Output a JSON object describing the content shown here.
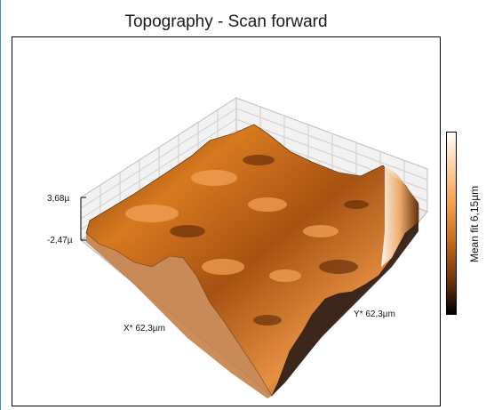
{
  "window": {
    "title": "Topography - Scan forward"
  },
  "plot": {
    "z_axis": {
      "max_label": "3,68µ",
      "min_label": "-2,47µ"
    },
    "x_axis_label": "X* 62,3µm",
    "y_axis_label": "Y* 62,3µm"
  },
  "colorbar": {
    "label": "Mean fit 6,15µm",
    "colors": [
      "#ffffff",
      "#ffd9b0",
      "#f5a54c",
      "#c96a18",
      "#6e3308",
      "#000000"
    ]
  }
}
